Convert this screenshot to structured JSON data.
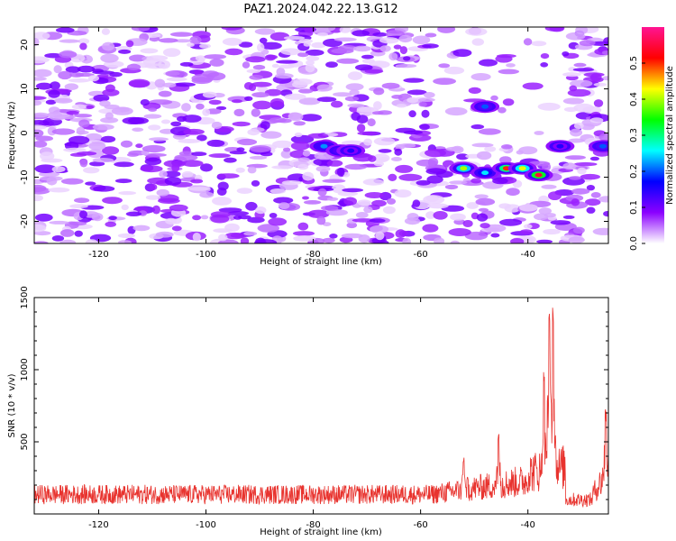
{
  "chart_data": [
    {
      "type": "heatmap",
      "title": "PAZ1.2024.042.22.13.G12",
      "xlabel": "Height of straight line (km)",
      "ylabel": "Frequency (Hz)",
      "xlim": [
        -132,
        -25
      ],
      "ylim": [
        -25,
        24
      ],
      "x_ticks": [
        -120,
        -100,
        -80,
        -60,
        -40
      ],
      "y_ticks": [
        20,
        10,
        0,
        -10,
        -20
      ],
      "colorbar": {
        "label": "Normalized spectral amplitude",
        "range": [
          0,
          0.6
        ],
        "ticks": [
          "0.0",
          "0.1",
          "0.2",
          "0.3",
          "0.4",
          "0.5"
        ],
        "colors": [
          "#ffffff",
          "#8b00ff",
          "#0000ff",
          "#00ffff",
          "#00ff00",
          "#ffff00",
          "#ff0000",
          "#ff1493"
        ]
      },
      "features": [
        {
          "x": -78,
          "y": -3,
          "amp": 0.22
        },
        {
          "x": -75,
          "y": -4,
          "amp": 0.2
        },
        {
          "x": -73,
          "y": -4,
          "amp": 0.15
        },
        {
          "x": -52,
          "y": -8,
          "amp": 0.4
        },
        {
          "x": -48,
          "y": -9,
          "amp": 0.25
        },
        {
          "x": -44,
          "y": -8,
          "amp": 0.5
        },
        {
          "x": -41,
          "y": -8,
          "amp": 0.42
        },
        {
          "x": -38,
          "y": -9.5,
          "amp": 0.55
        },
        {
          "x": -48,
          "y": 6,
          "amp": 0.2
        },
        {
          "x": -34,
          "y": -3,
          "amp": 0.15
        },
        {
          "x": -26,
          "y": -3,
          "amp": 0.2
        }
      ]
    },
    {
      "type": "line",
      "title": "",
      "xlabel": "Height of straight line (km)",
      "ylabel": "SNR (10 * v/v)",
      "xlim": [
        -132,
        -25
      ],
      "ylim": [
        0,
        1500
      ],
      "x_ticks": [
        -120,
        -100,
        -80,
        -60,
        -40
      ],
      "y_ticks": [
        500,
        1000,
        1500
      ],
      "line_color": "#e8332e",
      "baseline_level": 150,
      "peaks": [
        {
          "x": -36,
          "y": 1400
        },
        {
          "x": -35.3,
          "y": 1500
        },
        {
          "x": -37,
          "y": 1000
        },
        {
          "x": -45.5,
          "y": 580
        },
        {
          "x": -52,
          "y": 400
        },
        {
          "x": -25.5,
          "y": 750
        }
      ]
    }
  ]
}
